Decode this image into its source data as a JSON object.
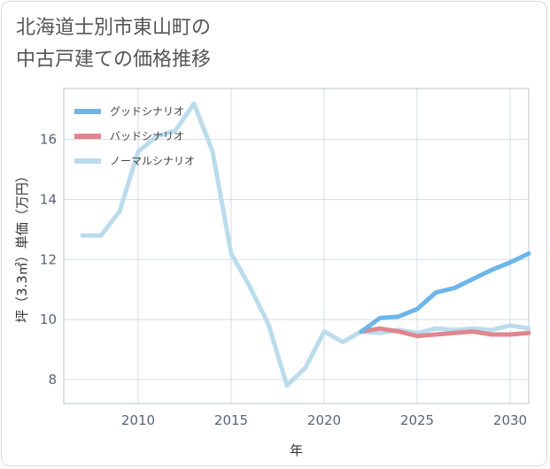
{
  "title_line1": "北海道士別市東山町の",
  "title_line2": "中古戸建ての価格推移",
  "chart_data": {
    "type": "line",
    "xlabel": "年",
    "ylabel": "坪（3.3㎡）単価（万円）",
    "xlim": [
      2006,
      2031
    ],
    "ylim": [
      7.2,
      17.7
    ],
    "xticks": [
      2010,
      2015,
      2020,
      2025,
      2030
    ],
    "yticks": [
      8,
      10,
      12,
      14,
      16
    ],
    "grid": true,
    "legend_position": "top-left",
    "series": [
      {
        "name": "グッドシナリオ",
        "color": "#6cb6ea",
        "x": [
          2022,
          2023,
          2024,
          2025,
          2026,
          2027,
          2028,
          2029,
          2030,
          2031
        ],
        "y": [
          9.6,
          10.05,
          10.1,
          10.35,
          10.9,
          11.05,
          11.35,
          11.65,
          11.9,
          12.2
        ]
      },
      {
        "name": "バッドシナリオ",
        "color": "#e0868f",
        "x": [
          2022,
          2023,
          2024,
          2025,
          2026,
          2027,
          2028,
          2029,
          2030,
          2031
        ],
        "y": [
          9.6,
          9.7,
          9.6,
          9.45,
          9.5,
          9.55,
          9.6,
          9.5,
          9.5,
          9.55
        ]
      },
      {
        "name": "ノーマルシナリオ",
        "color": "#badcec",
        "x": [
          2007,
          2008,
          2009,
          2010,
          2011,
          2012,
          2013,
          2014,
          2015,
          2016,
          2017,
          2018,
          2019,
          2020,
          2021,
          2022,
          2023,
          2024,
          2025,
          2026,
          2027,
          2028,
          2029,
          2030,
          2031
        ],
        "y": [
          12.8,
          12.8,
          13.6,
          15.6,
          16.1,
          16.3,
          17.2,
          15.6,
          12.2,
          11.1,
          9.85,
          7.8,
          8.4,
          9.6,
          9.25,
          9.6,
          9.55,
          9.65,
          9.55,
          9.7,
          9.65,
          9.7,
          9.65,
          9.8,
          9.7
        ]
      }
    ]
  }
}
